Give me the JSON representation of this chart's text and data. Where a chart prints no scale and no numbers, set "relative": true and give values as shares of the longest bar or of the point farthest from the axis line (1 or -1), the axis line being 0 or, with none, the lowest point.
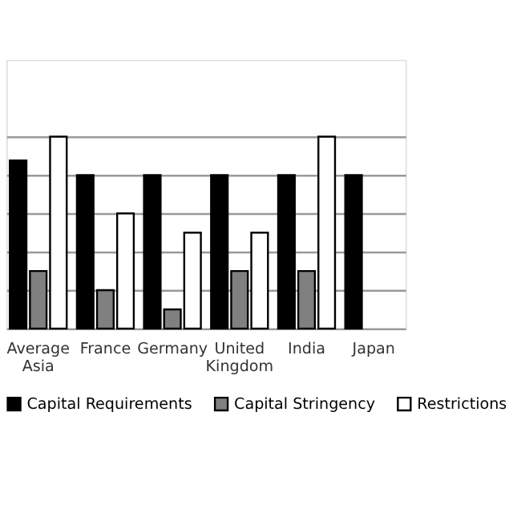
{
  "chart_data": {
    "type": "bar",
    "relative": true,
    "categories": [
      "Average Asia",
      "France",
      "Germany",
      "United Kingdom",
      "India",
      "Japan"
    ],
    "series": [
      {
        "name": "Capital Requirements",
        "color": "#000000",
        "values": [
          0.876,
          0.8,
          0.8,
          0.8,
          0.8,
          0.8
        ]
      },
      {
        "name": "Capital Stringency",
        "color": "#808080",
        "values": [
          0.3,
          0.2,
          0.1,
          0.3,
          0.3,
          null
        ]
      },
      {
        "name": "Restrictions",
        "color": "#ffffff",
        "values": [
          1,
          0.6,
          0.5,
          0.5,
          1,
          null
        ]
      }
    ],
    "grid": "y",
    "legend": "bottom",
    "tick_labels": "x"
  }
}
